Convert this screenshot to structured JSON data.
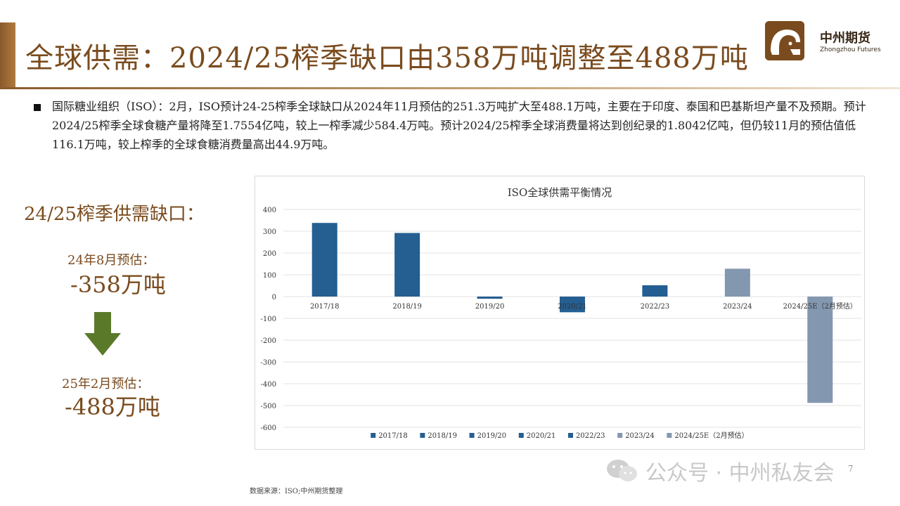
{
  "header": {
    "title": "全球供需：2024/25榨季缺口由358万吨调整至488万吨",
    "logo_cn": "中州期货",
    "logo_en": "Zhongzhou Futures",
    "accent_color": "#7a4b1e"
  },
  "bullet": {
    "text": "国际糖业组织（ISO）：2月，ISO预计24-25榨季全球缺口从2024年11月预估的251.3万吨扩大至488.1万吨，主要在于印度、泰国和巴基斯坦产量不及预期。预计2024/25榨季全球食糖产量将降至1.7554亿吨，较上一榨季减少584.4万吨。预计2024/25榨季全球消费量将达到创纪录的1.8042亿吨，但仍较11月的预估值低116.1万吨，较上榨季的全球食糖消费量高出44.9万吨。"
  },
  "side": {
    "gap_title": "24/25榨季供需缺口：",
    "est1_label": "24年8月预估：",
    "est1_value": "-358万吨",
    "est2_label": "25年2月预估：",
    "est2_value": "-488万吨",
    "arrow_color": "#5a7a2a"
  },
  "chart_data": {
    "type": "bar",
    "title": "ISO全球供需平衡情况",
    "categories": [
      "2017/18",
      "2018/19",
      "2019/20",
      "2020/21",
      "2022/23",
      "2023/24",
      "2024/25E（2月预估）"
    ],
    "values": [
      338,
      292,
      -10,
      -72,
      52,
      128,
      -488
    ],
    "colors": [
      "#255e91",
      "#255e91",
      "#255e91",
      "#255e91",
      "#255e91",
      "#8497b0",
      "#8497b0"
    ],
    "ylim": [
      -600,
      400
    ],
    "yticks": [
      400,
      300,
      200,
      100,
      0,
      -100,
      -200,
      -300,
      -400,
      -500,
      -600
    ],
    "grid": true,
    "legend": "bottom"
  },
  "footer": {
    "source": "数据来源：ISO;中州期货整理",
    "watermark": "公众号 · 中州私友会",
    "page_number": "7"
  }
}
